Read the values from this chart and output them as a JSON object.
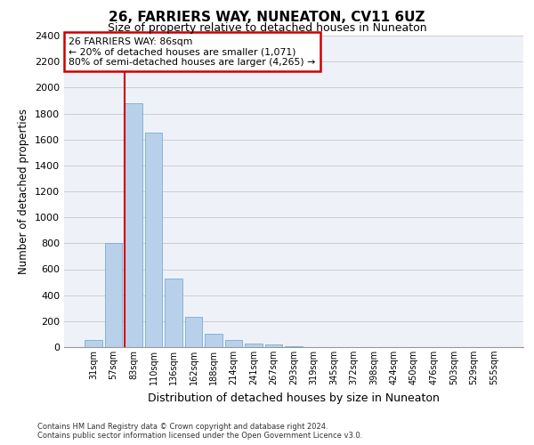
{
  "title1": "26, FARRIERS WAY, NUNEATON, CV11 6UZ",
  "title2": "Size of property relative to detached houses in Nuneaton",
  "xlabel": "Distribution of detached houses by size in Nuneaton",
  "ylabel": "Number of detached properties",
  "categories": [
    "31sqm",
    "57sqm",
    "83sqm",
    "110sqm",
    "136sqm",
    "162sqm",
    "188sqm",
    "214sqm",
    "241sqm",
    "267sqm",
    "293sqm",
    "319sqm",
    "345sqm",
    "372sqm",
    "398sqm",
    "424sqm",
    "450sqm",
    "476sqm",
    "503sqm",
    "529sqm",
    "555sqm"
  ],
  "values": [
    55,
    800,
    1880,
    1650,
    530,
    235,
    105,
    55,
    30,
    20,
    10,
    0,
    0,
    0,
    0,
    0,
    0,
    0,
    0,
    0,
    0
  ],
  "bar_color": "#b8d0ea",
  "bar_edge_color": "#7aacd4",
  "vline_color": "#cc0000",
  "annotation_text": "26 FARRIERS WAY: 86sqm\n← 20% of detached houses are smaller (1,071)\n80% of semi-detached houses are larger (4,265) →",
  "annotation_box_color": "#cc0000",
  "ylim": [
    0,
    2400
  ],
  "yticks": [
    0,
    200,
    400,
    600,
    800,
    1000,
    1200,
    1400,
    1600,
    1800,
    2000,
    2200,
    2400
  ],
  "grid_color": "#cccccc",
  "bg_color": "#eef2f8",
  "footer_line1": "Contains HM Land Registry data © Crown copyright and database right 2024.",
  "footer_line2": "Contains public sector information licensed under the Open Government Licence v3.0."
}
